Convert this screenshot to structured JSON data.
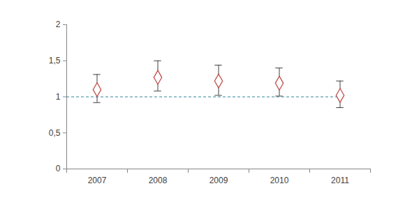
{
  "chart_data": {
    "type": "scatter",
    "categories": [
      "2007",
      "2008",
      "2009",
      "2010",
      "2011"
    ],
    "values": [
      1.1,
      1.27,
      1.22,
      1.19,
      1.02
    ],
    "error_lower": [
      0.92,
      1.08,
      1.02,
      1.01,
      0.85
    ],
    "error_upper": [
      1.31,
      1.5,
      1.44,
      1.4,
      1.22
    ],
    "color": "#c0504d",
    "marker": "diamond",
    "reference_line": {
      "value": 1,
      "color": "#31859c",
      "line_style": "dashed"
    },
    "ylim": [
      0,
      2
    ],
    "yticks": [
      0,
      {
        "value": 0.5,
        "label": "0,5"
      },
      1,
      {
        "value": 1.5,
        "label": "1,5"
      },
      2
    ],
    "grid": false
  }
}
